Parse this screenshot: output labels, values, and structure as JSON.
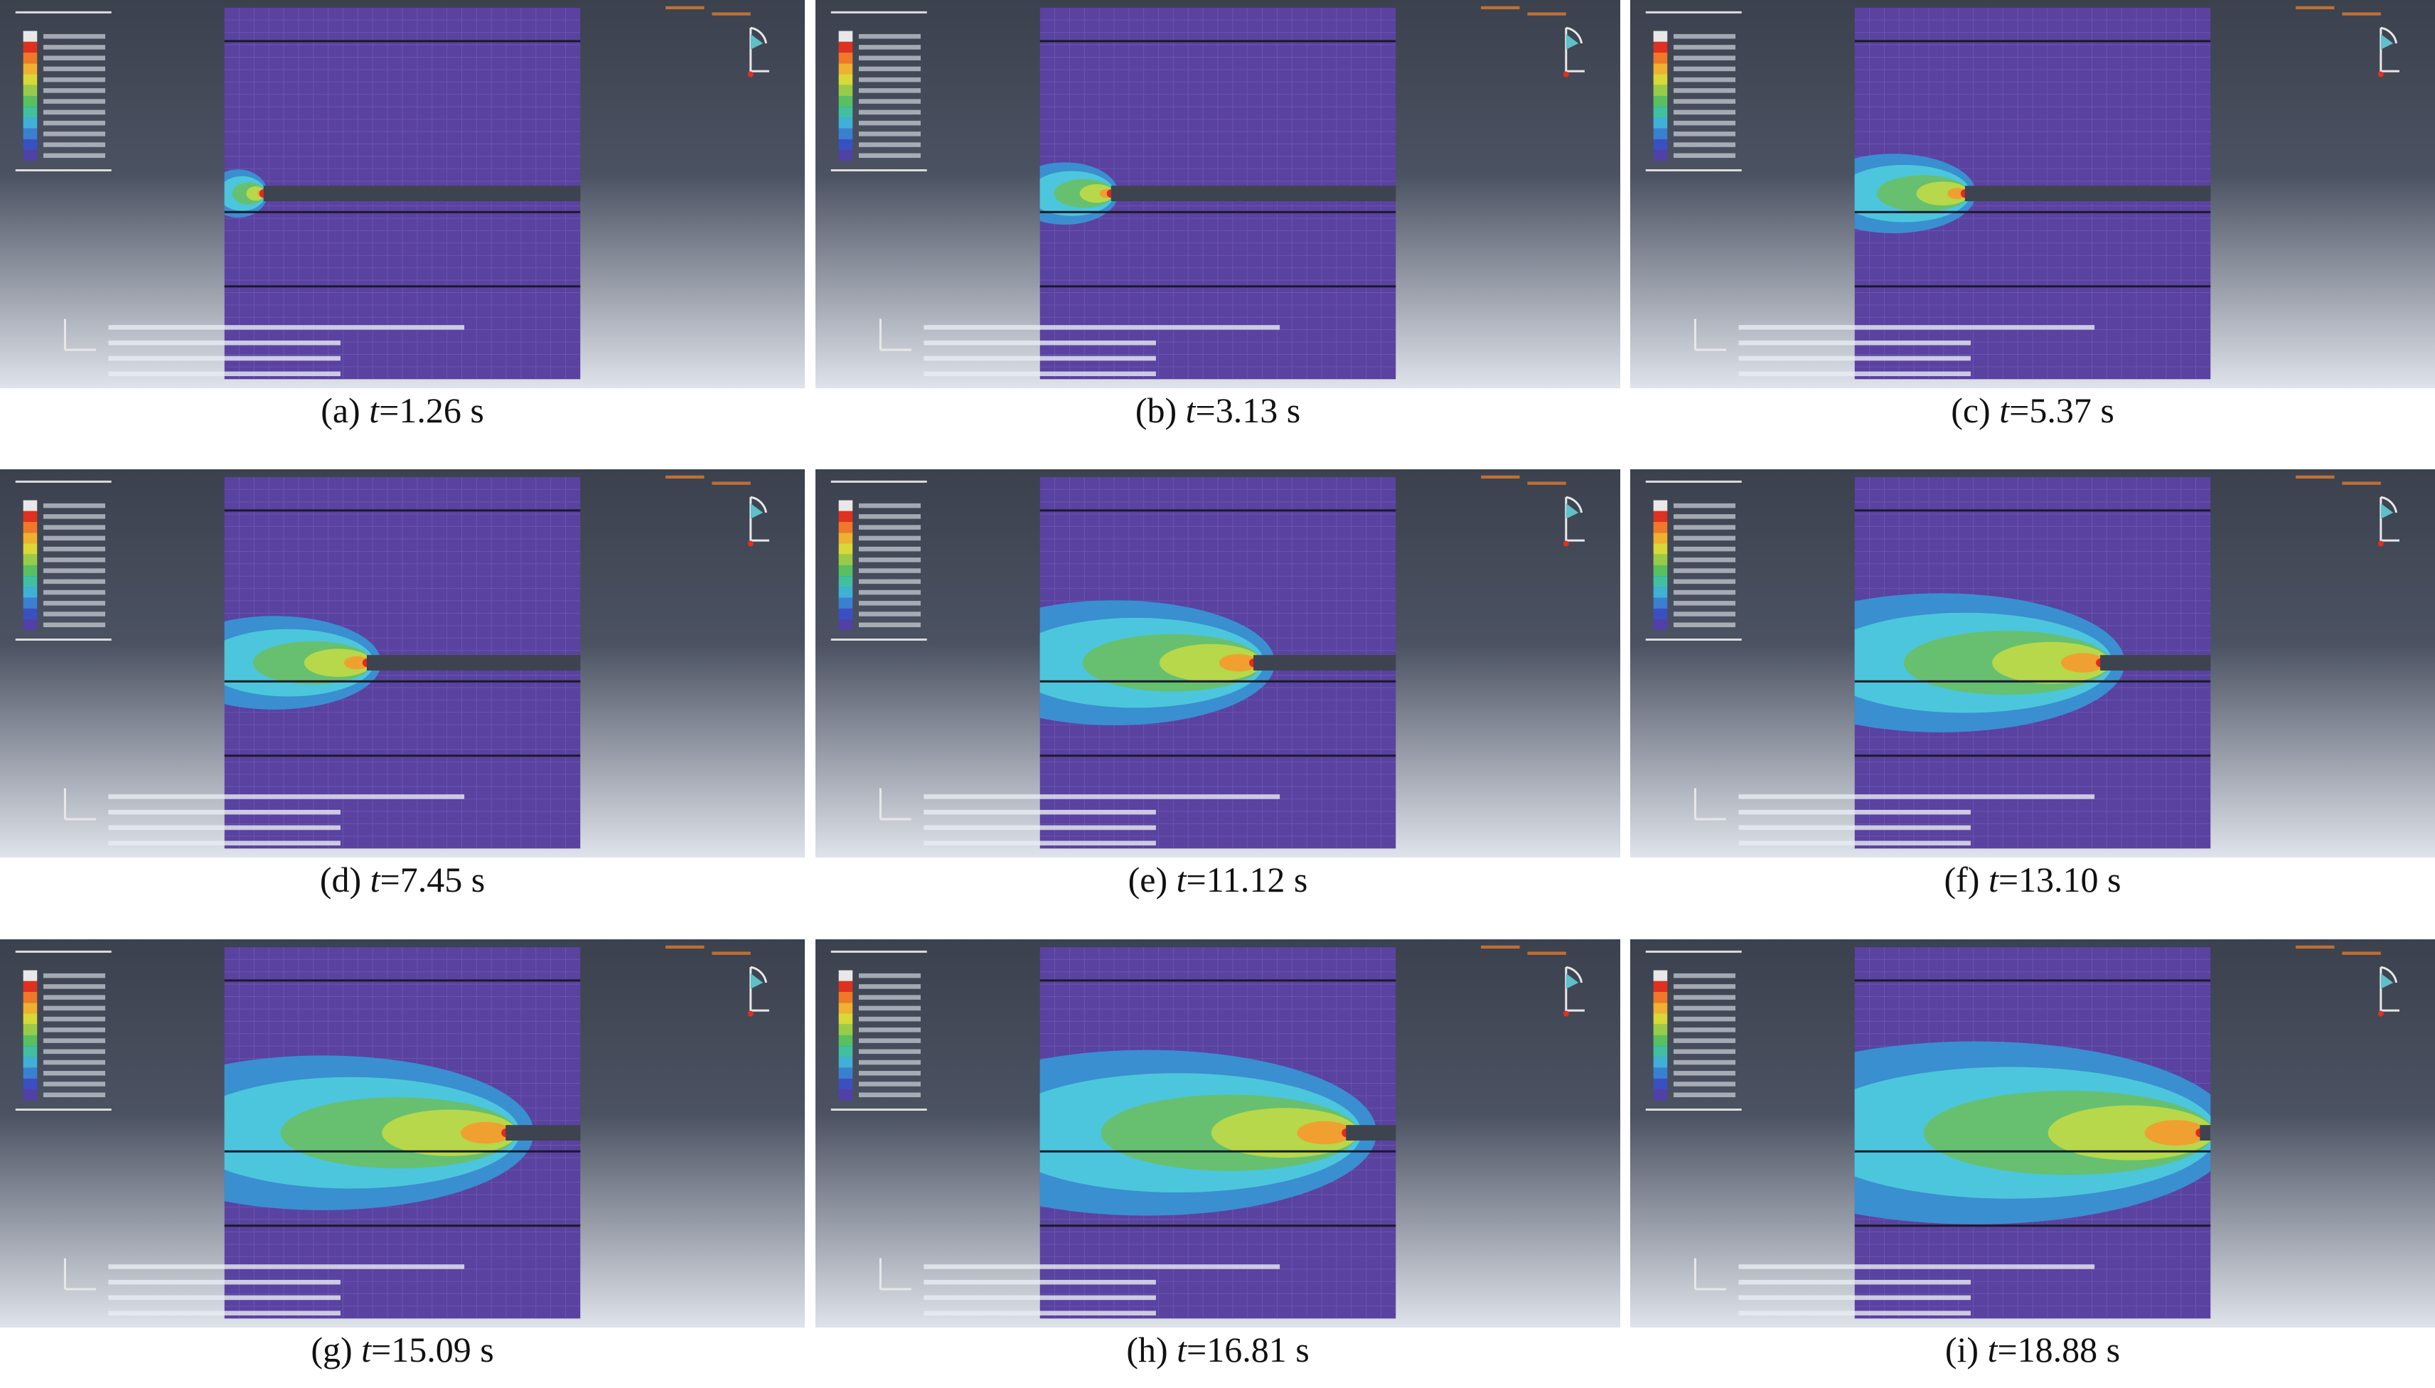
{
  "panels": [
    {
      "label": "(a)",
      "symbol": "t",
      "text": "=1.26 s"
    },
    {
      "label": "(b)",
      "symbol": "t",
      "text": "=3.13 s"
    },
    {
      "label": "(c)",
      "symbol": "t",
      "text": "=5.37 s"
    },
    {
      "label": "(d)",
      "symbol": "t",
      "text": "=7.45 s"
    },
    {
      "label": "(e)",
      "symbol": "t",
      "text": "=11.12 s"
    },
    {
      "label": "(f)",
      "symbol": "t",
      "text": "=13.10 s"
    },
    {
      "label": "(g)",
      "symbol": "t",
      "text": "=15.09 s"
    },
    {
      "label": "(h)",
      "symbol": "t",
      "text": "=16.81 s"
    },
    {
      "label": "(i)",
      "symbol": "t",
      "text": "=18.88 s"
    }
  ]
}
